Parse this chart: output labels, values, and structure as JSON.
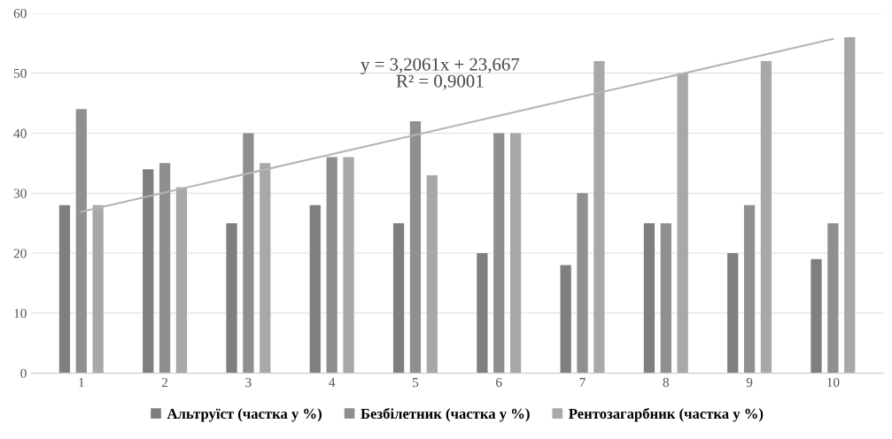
{
  "chart_data": {
    "type": "bar",
    "categories": [
      "1",
      "2",
      "3",
      "4",
      "5",
      "6",
      "7",
      "8",
      "9",
      "10"
    ],
    "series": [
      {
        "name": "Альтруїст (частка у %)",
        "color": "#7f7f7f",
        "values": [
          28,
          34,
          25,
          28,
          25,
          20,
          18,
          25,
          20,
          19
        ]
      },
      {
        "name": "Безбілетник (частка у %)",
        "color": "#8f8f8f",
        "values": [
          44,
          35,
          40,
          36,
          42,
          40,
          30,
          25,
          28,
          25
        ]
      },
      {
        "name": "Рентозагарбник (частка у %)",
        "color": "#a8a8a8",
        "values": [
          28,
          31,
          35,
          36,
          33,
          40,
          52,
          50,
          52,
          56
        ]
      },
      {
        "type": "line",
        "color": "#b4b4b4",
        "values": [
          26.9,
          30.1,
          33.3,
          36.5,
          39.7,
          42.9,
          46.1,
          49.3,
          52.5,
          55.7
        ]
      }
    ],
    "annotations": [
      "y = 3,2061x + 23,667\nR² = 0,9001"
    ],
    "ylim": [
      0,
      60
    ],
    "yticks": [
      0,
      10,
      20,
      30,
      40,
      50,
      60
    ],
    "grid": "y",
    "legend": "bottom"
  }
}
